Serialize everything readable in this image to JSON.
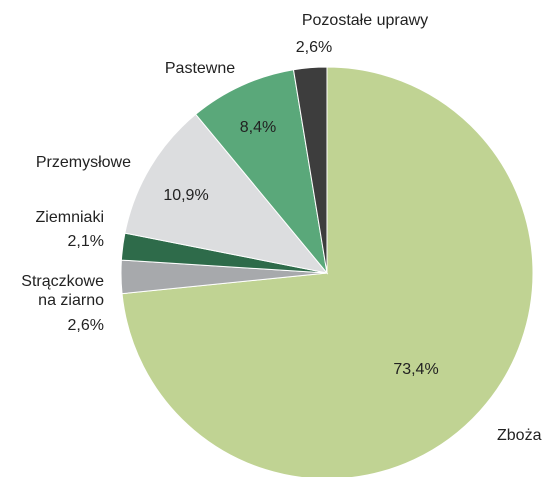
{
  "chart_data": {
    "type": "pie",
    "categories": [
      "Zboża",
      "Strączkowe na ziarno",
      "Ziemniaki",
      "Przemysłowe",
      "Pastewne",
      "Pozostałe uprawy"
    ],
    "values": [
      73.4,
      2.6,
      2.1,
      10.9,
      8.4,
      2.6
    ],
    "value_labels": [
      "73,4%",
      "2,6%",
      "2,1%",
      "10,9%",
      "8,4%",
      "2,6%"
    ],
    "colors": [
      "#c0d393",
      "#a7a9ac",
      "#2e6b4a",
      "#dcdddf",
      "#5aa87a",
      "#3d3d3d"
    ]
  }
}
